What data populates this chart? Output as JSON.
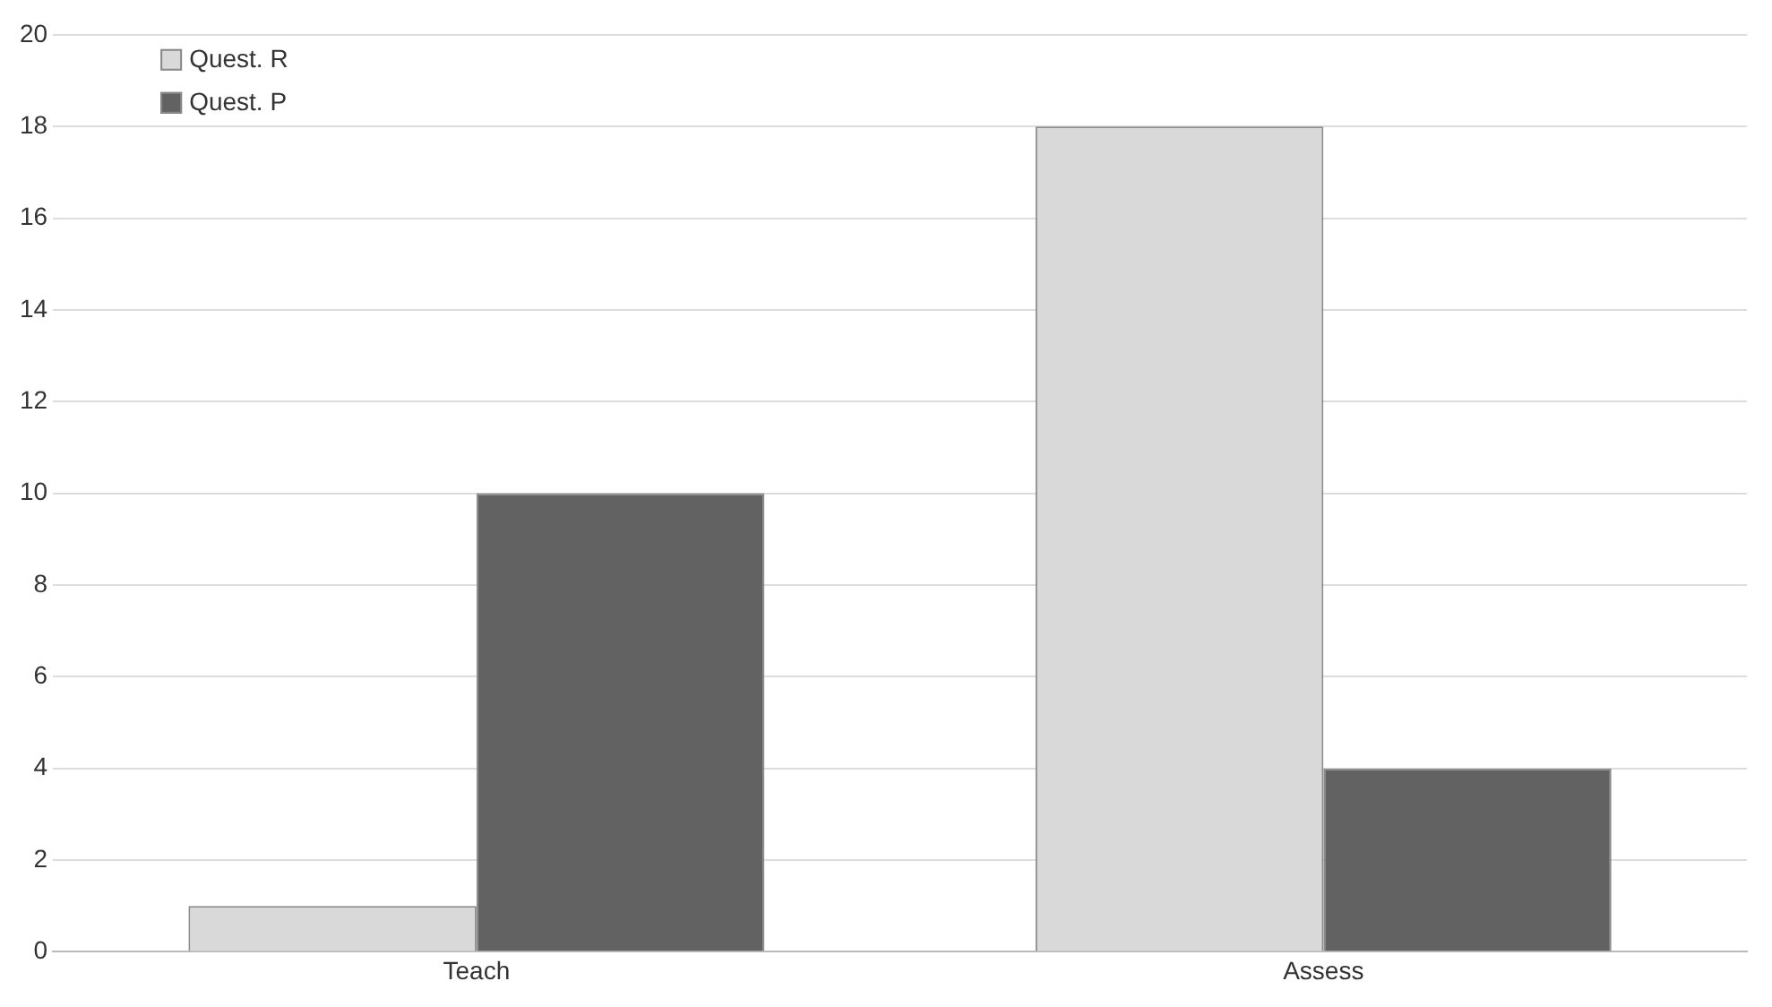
{
  "chart_data": {
    "type": "bar",
    "categories": [
      "Teach",
      "Assess"
    ],
    "series": [
      {
        "name": "Quest. R",
        "color": "#d9d9d9",
        "values": [
          1,
          18
        ]
      },
      {
        "name": "Quest. P",
        "color": "#626262",
        "values": [
          10,
          4
        ]
      }
    ],
    "ylim": [
      0,
      20
    ],
    "yticks": [
      0,
      2,
      4,
      6,
      8,
      10,
      12,
      14,
      16,
      18,
      20
    ],
    "grid": "y",
    "legend": "top left"
  }
}
